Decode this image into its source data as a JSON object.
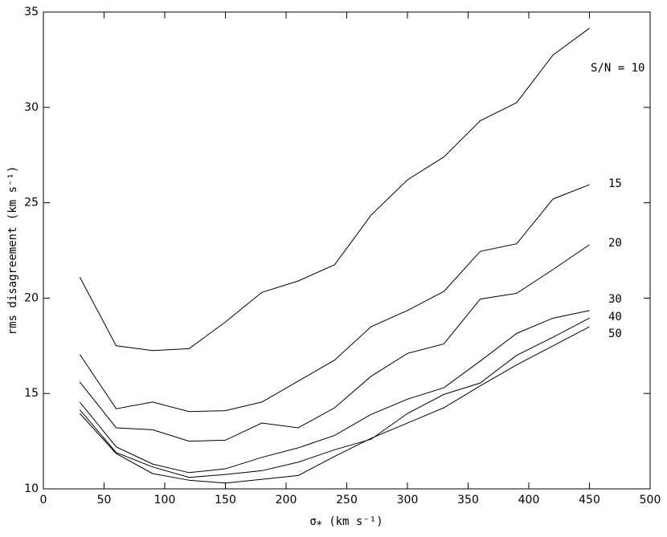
{
  "chart_data": {
    "type": "line",
    "x_label": "σ⁎  (km s⁻¹)",
    "y_label": "rms disagreement  (km s⁻¹)",
    "x": [
      30,
      60,
      90,
      120,
      150,
      180,
      210,
      240,
      270,
      300,
      330,
      360,
      390,
      420,
      450
    ],
    "series": [
      {
        "name": "S/N = 10",
        "color": "#000000",
        "values": [
          21.1,
          17.5,
          17.25,
          17.35,
          18.75,
          20.3,
          20.9,
          21.75,
          24.35,
          26.2,
          27.4,
          29.3,
          30.25,
          32.75,
          34.15
        ]
      },
      {
        "name": "15",
        "color": "#000000",
        "values": [
          17.05,
          14.2,
          14.55,
          14.05,
          14.1,
          14.55,
          15.65,
          16.75,
          18.5,
          19.35,
          20.35,
          22.45,
          22.85,
          25.2,
          25.95
        ]
      },
      {
        "name": "20",
        "color": "#000000",
        "values": [
          15.6,
          13.2,
          13.1,
          12.5,
          12.55,
          13.45,
          13.2,
          14.25,
          15.9,
          17.1,
          17.6,
          19.95,
          20.25,
          21.5,
          22.8
        ]
      },
      {
        "name": "30",
        "color": "#000000",
        "values": [
          14.55,
          12.2,
          11.3,
          10.85,
          11.05,
          11.65,
          12.15,
          12.8,
          13.9,
          14.7,
          15.3,
          16.7,
          18.15,
          18.95,
          19.35
        ]
      },
      {
        "name": "40",
        "color": "#000000",
        "values": [
          14.15,
          11.9,
          11.15,
          10.6,
          10.75,
          10.95,
          11.4,
          12.05,
          12.6,
          13.95,
          14.95,
          15.55,
          17.0,
          17.95,
          18.95
        ]
      },
      {
        "name": "50",
        "color": "#000000",
        "values": [
          13.95,
          11.85,
          10.8,
          10.45,
          10.3,
          10.5,
          10.7,
          11.7,
          12.65,
          13.45,
          14.25,
          15.4,
          16.5,
          17.5,
          18.5
        ]
      }
    ],
    "xlim": [
      0,
      500
    ],
    "xticks": [
      0,
      50,
      100,
      150,
      200,
      250,
      300,
      350,
      400,
      450,
      500
    ],
    "ylim": [
      10,
      35
    ],
    "yticks": [
      10,
      15,
      20,
      25,
      30,
      35
    ]
  }
}
